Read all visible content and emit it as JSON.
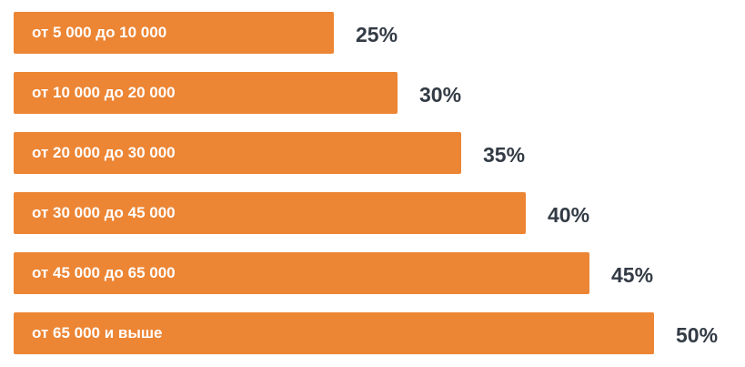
{
  "chart_data": {
    "type": "bar",
    "orientation": "horizontal",
    "categories": [
      "от 5 000 до 10 000",
      "от 10 000 до 20 000",
      "от 20 000 до 30 000",
      "от 30 000 до 45 000",
      "от 45 000 до 65 000",
      "от 65 000 и выше"
    ],
    "values": [
      25,
      30,
      35,
      40,
      45,
      50
    ],
    "value_labels": [
      "25%",
      "30%",
      "35%",
      "40%",
      "45%",
      "50%"
    ],
    "title": "",
    "xlabel": "",
    "ylabel": "",
    "grid": false,
    "legend": "none",
    "colors": {
      "bar": "#ec8534",
      "bar_text": "#ffffff",
      "value_text": "#333b45"
    }
  }
}
